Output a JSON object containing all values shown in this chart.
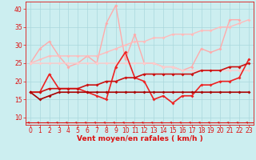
{
  "xlabel": "Vent moyen/en rafales ( km/h )",
  "bg_color": "#cceef0",
  "grid_color": "#aad8dc",
  "xlim": [
    -0.5,
    23.5
  ],
  "ylim": [
    8,
    42
  ],
  "yticks": [
    10,
    15,
    20,
    25,
    30,
    35,
    40
  ],
  "xticks": [
    0,
    1,
    2,
    3,
    4,
    5,
    6,
    7,
    8,
    9,
    10,
    11,
    12,
    13,
    14,
    15,
    16,
    17,
    18,
    19,
    20,
    21,
    22,
    23
  ],
  "series": [
    {
      "color": "#ffaaaa",
      "lw": 1.0,
      "marker": "D",
      "ms": 2.0,
      "values": [
        25,
        29,
        31,
        27,
        24,
        25,
        27,
        25,
        36,
        41,
        26,
        33,
        25,
        25,
        24,
        24,
        23,
        24,
        29,
        28,
        29,
        37,
        37,
        null
      ]
    },
    {
      "color": "#ffbbbb",
      "lw": 1.0,
      "marker": "D",
      "ms": 2.0,
      "values": [
        25,
        26,
        27,
        27,
        27,
        27,
        27,
        27,
        28,
        29,
        30,
        31,
        31,
        32,
        32,
        33,
        33,
        33,
        34,
        34,
        35,
        35,
        36,
        37
      ]
    },
    {
      "color": "#ffcccc",
      "lw": 1.0,
      "marker": "D",
      "ms": 2.0,
      "values": [
        25,
        25,
        25,
        25,
        25,
        25,
        25,
        25,
        25,
        25,
        25,
        25,
        25,
        25,
        24,
        24,
        23,
        23,
        23,
        23,
        23,
        23,
        23,
        23
      ]
    },
    {
      "color": "#ee2222",
      "lw": 1.2,
      "marker": "D",
      "ms": 2.0,
      "values": [
        17,
        17,
        22,
        18,
        18,
        18,
        17,
        16,
        15,
        24,
        28,
        21,
        20,
        15,
        16,
        14,
        16,
        16,
        19,
        19,
        20,
        20,
        21,
        26
      ]
    },
    {
      "color": "#cc1111",
      "lw": 1.2,
      "marker": "D",
      "ms": 2.0,
      "values": [
        17,
        17,
        18,
        18,
        18,
        18,
        19,
        19,
        20,
        20,
        21,
        21,
        22,
        22,
        22,
        22,
        22,
        22,
        23,
        23,
        23,
        24,
        24,
        25
      ]
    },
    {
      "color": "#aa0000",
      "lw": 1.2,
      "marker": "D",
      "ms": 2.0,
      "values": [
        17,
        15,
        16,
        17,
        17,
        17,
        17,
        17,
        17,
        17,
        17,
        17,
        17,
        17,
        17,
        17,
        17,
        17,
        17,
        17,
        17,
        17,
        17,
        17
      ]
    }
  ],
  "arrow_color": "#dd1111",
  "xlabel_color": "#dd1111",
  "tick_color": "#dd1111",
  "label_fontsize": 6.5,
  "tick_fontsize": 5.5
}
